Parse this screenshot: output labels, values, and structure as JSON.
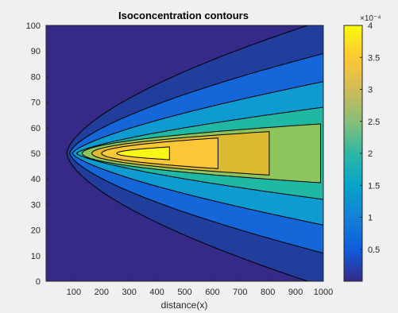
{
  "chart_data": {
    "type": "contour",
    "title": "Isoconcentration contours",
    "xlabel": "distance(x)",
    "ylabel": "",
    "xlim": [
      0,
      1000
    ],
    "ylim": [
      0,
      100
    ],
    "xticks": [
      100,
      200,
      300,
      400,
      500,
      600,
      700,
      800,
      900,
      1000
    ],
    "yticks": [
      0,
      10,
      20,
      30,
      40,
      50,
      60,
      70,
      80,
      90,
      100
    ],
    "colorbar": {
      "multiplier": "×10⁻⁴",
      "range": [
        0.0,
        4.0
      ],
      "ticks": [
        0.5,
        1,
        1.5,
        2,
        2.5,
        3,
        3.5,
        4
      ]
    },
    "levels": [
      {
        "value": 0.5,
        "color": "#213e9d",
        "x_left": 75,
        "x_right": 1000,
        "y_half_width": 52,
        "curvature": 1.6
      },
      {
        "value": 1.0,
        "color": "#1566d8",
        "x_left": 85,
        "x_right": 1000,
        "y_half_width": 39,
        "curvature": 1.5
      },
      {
        "value": 1.5,
        "color": "#0d9bd1",
        "x_left": 95,
        "x_right": 1000,
        "y_half_width": 28,
        "curvature": 1.4
      },
      {
        "value": 2.0,
        "color": "#1fb8a4",
        "x_left": 110,
        "x_right": 1000,
        "y_half_width": 18,
        "curvature": 1.4
      },
      {
        "value": 2.5,
        "color": "#8dc55c",
        "x_left": 130,
        "x_right": 990,
        "y_half_width": 11.5,
        "curvature": 1.9
      },
      {
        "value": 3.0,
        "color": "#dcba2f",
        "x_left": 165,
        "x_right": 805,
        "y_half_width": 8.5,
        "curvature": 2.0
      },
      {
        "value": 3.5,
        "color": "#fac737",
        "x_left": 200,
        "x_right": 620,
        "y_half_width": 6,
        "curvature": 2.0
      },
      {
        "value": 4.0,
        "color": "#f8f816",
        "x_left": 255,
        "x_right": 445,
        "y_half_width": 2.5,
        "curvature": 2.0
      }
    ],
    "background_color": "#352a87",
    "colormap": [
      "#352a87",
      "#0f5cdd",
      "#1481d6",
      "#06a4ca",
      "#2eb7a4",
      "#87bf77",
      "#d1bb59",
      "#fec832",
      "#f9fb0e"
    ],
    "grid": false,
    "legend": "none"
  }
}
